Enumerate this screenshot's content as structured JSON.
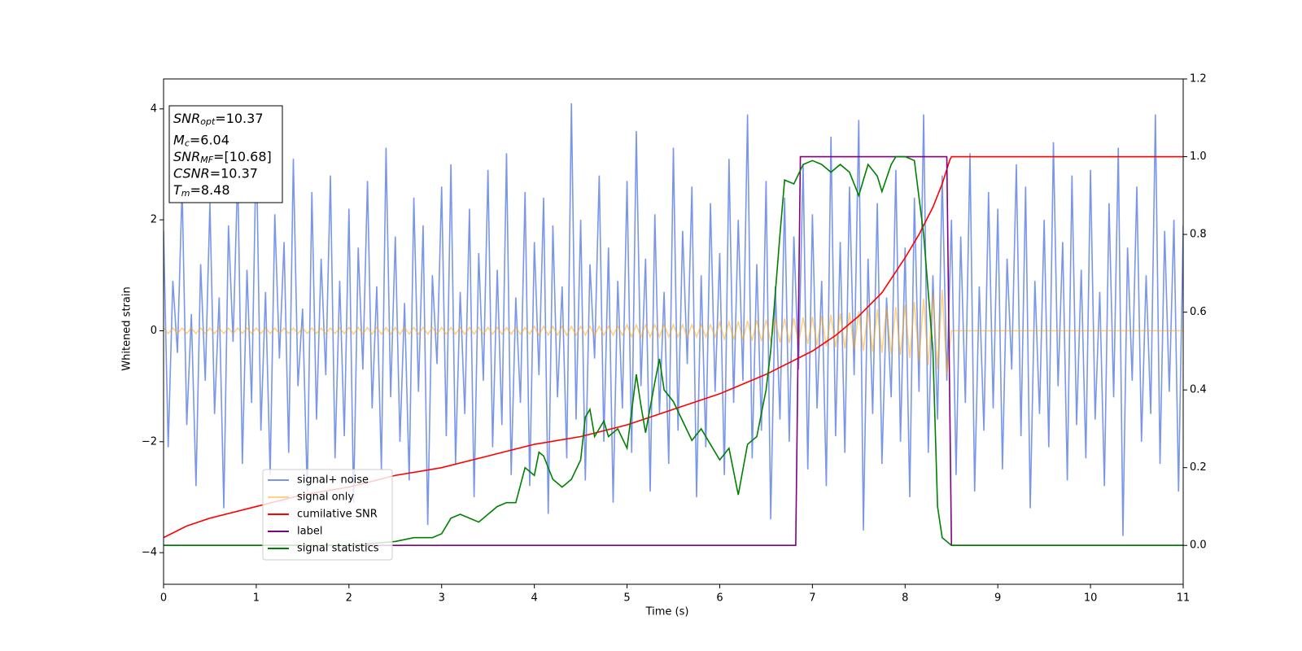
{
  "chart_data": {
    "type": "line",
    "xlabel": "Time (s)",
    "ylabel": "Whitened strain",
    "xlim": [
      0,
      11
    ],
    "xticks": [
      0,
      1,
      2,
      3,
      4,
      5,
      6,
      7,
      8,
      9,
      10,
      11
    ],
    "ylim": [
      -4.57,
      4.54
    ],
    "yticks": [
      -4,
      -2,
      0,
      2,
      4
    ],
    "y2lim": [
      -0.1,
      1.2
    ],
    "y2ticks": [
      {
        "value": 0,
        "label": "0.0"
      },
      0.2,
      0.4,
      0.6,
      0.8,
      {
        "value": 1,
        "label": "1.0"
      },
      1.2
    ],
    "legend": "lower left",
    "annotation": [
      {
        "base": "SNR",
        "sub": "opt",
        "rest": "=10.37"
      },
      {
        "base": "M",
        "sub": "c",
        "rest": "=6.04"
      },
      {
        "base": "SNR",
        "sub": "MF",
        "rest": "=[10.68]"
      },
      {
        "base": "CSNR",
        "rest": "=10.37"
      },
      {
        "base": "T",
        "sub": "m",
        "rest": "=8.48"
      }
    ],
    "x": [
      0,
      0.05,
      0.1,
      0.15,
      0.2,
      0.25,
      0.3,
      0.35,
      0.4,
      0.45,
      0.5,
      0.55,
      0.6,
      0.65,
      0.7,
      0.75,
      0.8,
      0.85,
      0.9,
      0.95,
      1,
      1.05,
      1.1,
      1.15,
      1.2,
      1.25,
      1.3,
      1.35,
      1.4,
      1.45,
      1.5,
      1.55,
      1.6,
      1.65,
      1.7,
      1.75,
      1.8,
      1.85,
      1.9,
      1.95,
      2,
      2.05,
      2.1,
      2.15,
      2.2,
      2.25,
      2.3,
      2.35,
      2.4,
      2.45,
      2.5,
      2.55,
      2.6,
      2.65,
      2.7,
      2.75,
      2.8,
      2.85,
      2.9,
      2.95,
      3,
      3.05,
      3.1,
      3.15,
      3.2,
      3.25,
      3.3,
      3.35,
      3.4,
      3.45,
      3.5,
      3.55,
      3.6,
      3.65,
      3.7,
      3.75,
      3.8,
      3.85,
      3.9,
      3.95,
      4,
      4.05,
      4.1,
      4.15,
      4.2,
      4.25,
      4.3,
      4.35,
      4.4,
      4.45,
      4.5,
      4.55,
      4.6,
      4.65,
      4.7,
      4.75,
      4.8,
      4.85,
      4.9,
      4.95,
      5,
      5.05,
      5.1,
      5.15,
      5.2,
      5.25,
      5.3,
      5.35,
      5.4,
      5.45,
      5.5,
      5.55,
      5.6,
      5.65,
      5.7,
      5.75,
      5.8,
      5.85,
      5.9,
      5.95,
      6,
      6.05,
      6.1,
      6.15,
      6.2,
      6.25,
      6.3,
      6.35,
      6.4,
      6.45,
      6.5,
      6.55,
      6.6,
      6.65,
      6.7,
      6.75,
      6.8,
      6.85,
      6.9,
      6.95,
      7,
      7.05,
      7.1,
      7.15,
      7.2,
      7.25,
      7.3,
      7.35,
      7.4,
      7.45,
      7.5,
      7.55,
      7.6,
      7.65,
      7.7,
      7.75,
      7.8,
      7.85,
      7.9,
      7.95,
      8,
      8.05,
      8.1,
      8.15,
      8.2,
      8.25,
      8.3,
      8.35,
      8.4,
      8.45,
      8.5,
      8.55,
      8.6,
      8.65,
      8.7,
      8.75,
      8.8,
      8.85,
      8.9,
      8.95,
      9,
      9.05,
      9.1,
      9.15,
      9.2,
      9.25,
      9.3,
      9.35,
      9.4,
      9.45,
      9.5,
      9.55,
      9.6,
      9.65,
      9.7,
      9.75,
      9.8,
      9.85,
      9.9,
      9.95,
      10,
      10.05,
      10.1,
      10.15,
      10.2,
      10.25,
      10.3,
      10.35,
      10.4,
      10.45,
      10.5,
      10.55,
      10.6,
      10.65,
      10.7,
      10.75,
      10.8,
      10.85,
      10.9,
      10.95,
      11
    ],
    "series": [
      {
        "name": "signal+ noise",
        "color": "royalblue",
        "alpha": 0.7,
        "values": [
          1.8,
          -2.1,
          0.9,
          -0.4,
          2.6,
          -1.7,
          0.3,
          -2.8,
          1.2,
          -0.9,
          2.3,
          -1.5,
          0.6,
          -3.2,
          1.9,
          -0.2,
          2.9,
          -2.4,
          1.1,
          -1.3,
          3.4,
          -1.8,
          0.7,
          -2.6,
          2.1,
          -0.5,
          1.6,
          -2.2,
          3.1,
          -1.0,
          0.4,
          -2.9,
          2.5,
          -1.6,
          1.3,
          -0.8,
          2.8,
          -2.3,
          0.9,
          -1.9,
          2.2,
          -3.1,
          1.5,
          -0.7,
          2.7,
          -1.4,
          0.8,
          -2.5,
          3.3,
          -1.2,
          1.7,
          -2.0,
          0.5,
          -2.7,
          2.4,
          -1.1,
          1.9,
          -3.5,
          1.0,
          -0.6,
          2.6,
          -1.9,
          3.0,
          -2.4,
          0.7,
          -1.5,
          2.2,
          -3.0,
          1.4,
          -0.9,
          2.9,
          -2.1,
          1.1,
          -1.7,
          3.2,
          -2.6,
          0.6,
          -1.3,
          2.5,
          -2.8,
          1.6,
          -0.8,
          2.4,
          -3.3,
          1.9,
          -1.2,
          0.8,
          -2.3,
          4.1,
          -1.6,
          2.0,
          -2.7,
          1.2,
          -0.5,
          2.8,
          -2.0,
          1.5,
          -3.1,
          0.9,
          -1.4,
          2.7,
          -2.2,
          3.6,
          -1.0,
          1.3,
          -2.9,
          2.1,
          -1.5,
          0.7,
          -2.4,
          3.3,
          -1.8,
          1.8,
          -0.6,
          2.6,
          -3.0,
          1.0,
          -2.1,
          2.3,
          -1.1,
          1.4,
          -2.6,
          3.1,
          -1.3,
          2.0,
          -0.9,
          3.9,
          -2.3,
          1.2,
          -1.8,
          2.7,
          -3.4,
          0.8,
          -1.6,
          2.4,
          -2.0,
          1.7,
          -0.7,
          3.0,
          -2.5,
          2.1,
          -1.4,
          0.9,
          -2.8,
          3.5,
          -1.9,
          1.6,
          -2.2,
          2.6,
          -0.8,
          3.8,
          -3.6,
          1.3,
          -1.5,
          2.3,
          -2.4,
          0.6,
          -1.2,
          2.9,
          -2.0,
          1.5,
          -3.0,
          2.4,
          -1.1,
          3.9,
          -2.2,
          1.0,
          -1.6,
          2.8,
          -0.9,
          2.0,
          -2.6,
          1.7,
          -1.3,
          3.2,
          -2.9,
          0.8,
          -1.8,
          2.5,
          -1.4,
          2.2,
          -2.5,
          1.3,
          -0.7,
          3.0,
          -1.9,
          2.6,
          -3.2,
          0.9,
          -1.5,
          2.0,
          -2.1,
          3.4,
          -1.0,
          1.6,
          -2.7,
          2.8,
          -1.7,
          1.1,
          -2.3,
          2.9,
          -1.6,
          0.7,
          -2.8,
          2.3,
          -1.2,
          3.3,
          -3.7,
          1.5,
          -0.9,
          2.6,
          -2.0,
          1.0,
          -1.5,
          3.9,
          -2.4,
          1.8,
          -1.1,
          2.0,
          -2.9,
          1.9
        ]
      },
      {
        "name": "signal only",
        "color": "orange",
        "alpha": 0.5,
        "values": [
          0.05,
          -0.05,
          0.05,
          -0.05,
          0.05,
          -0.05,
          0.05,
          -0.05,
          0.05,
          -0.05,
          0.05,
          -0.05,
          0.05,
          -0.05,
          0.05,
          -0.05,
          0.05,
          -0.05,
          0.05,
          -0.05,
          0.05,
          -0.05,
          0.05,
          -0.05,
          0.05,
          -0.05,
          0.05,
          -0.05,
          0.05,
          -0.05,
          0.05,
          -0.05,
          0.05,
          -0.05,
          0.05,
          -0.05,
          0.05,
          -0.05,
          0.05,
          -0.05,
          0.06,
          -0.06,
          0.06,
          -0.06,
          0.06,
          -0.06,
          0.06,
          -0.06,
          0.06,
          -0.06,
          0.06,
          -0.06,
          0.06,
          -0.06,
          0.06,
          -0.06,
          0.06,
          -0.06,
          0.06,
          -0.06,
          0.06,
          -0.06,
          0.06,
          -0.06,
          0.06,
          -0.06,
          0.06,
          -0.06,
          0.06,
          -0.06,
          0.06,
          -0.06,
          0.06,
          -0.06,
          0.06,
          -0.06,
          0.06,
          -0.06,
          0.06,
          -0.06,
          0.08,
          -0.08,
          0.08,
          -0.08,
          0.08,
          -0.08,
          0.08,
          -0.08,
          0.08,
          -0.08,
          0.08,
          -0.08,
          0.08,
          -0.08,
          0.08,
          -0.08,
          0.08,
          -0.08,
          0.08,
          -0.08,
          0.11,
          -0.11,
          0.11,
          -0.11,
          0.11,
          -0.11,
          0.11,
          -0.11,
          0.11,
          -0.11,
          0.11,
          -0.11,
          0.11,
          -0.11,
          0.11,
          -0.11,
          0.11,
          -0.11,
          0.11,
          -0.11,
          0.15,
          -0.15,
          0.16,
          -0.16,
          0.17,
          -0.17,
          0.18,
          -0.18,
          0.19,
          -0.19,
          0.2,
          -0.2,
          0.21,
          -0.21,
          0.22,
          -0.22,
          0.23,
          -0.23,
          0.24,
          -0.24,
          0.25,
          -0.26,
          0.27,
          -0.28,
          0.29,
          -0.3,
          0.31,
          -0.32,
          0.33,
          -0.34,
          0.35,
          -0.36,
          0.37,
          -0.38,
          0.39,
          -0.4,
          0.41,
          -0.42,
          0.43,
          -0.44,
          0.46,
          -0.49,
          0.52,
          -0.55,
          0.58,
          -0.62,
          0.66,
          -0.7,
          0.74,
          -0.78,
          0,
          0,
          0,
          0,
          0,
          0,
          0,
          0,
          0,
          0,
          0,
          0,
          0,
          0,
          0,
          0,
          0,
          0,
          0,
          0,
          0,
          0,
          0,
          0,
          0,
          0,
          0,
          0,
          0,
          0,
          0,
          0,
          0,
          0,
          0,
          0,
          0,
          0,
          0,
          0,
          0,
          0,
          0,
          0,
          0,
          0,
          0,
          0,
          0,
          0,
          0
        ]
      },
      {
        "name": "cumilative SNR",
        "color": "red",
        "axis": "y2",
        "x": [
          0,
          0.25,
          0.5,
          1,
          1.5,
          2,
          2.5,
          3,
          3.5,
          4,
          4.5,
          5,
          5.5,
          6,
          6.5,
          7,
          7.25,
          7.5,
          7.75,
          8,
          8.15,
          8.3,
          8.4,
          8.48,
          8.5,
          11
        ],
        "values": [
          0.02,
          0.05,
          0.07,
          0.1,
          0.13,
          0.15,
          0.18,
          0.2,
          0.23,
          0.26,
          0.28,
          0.31,
          0.35,
          0.39,
          0.44,
          0.5,
          0.54,
          0.59,
          0.65,
          0.74,
          0.8,
          0.87,
          0.93,
          0.99,
          1.0,
          1.0
        ]
      },
      {
        "name": "label",
        "color": "purple",
        "axis": "y2",
        "x": [
          0,
          6.82,
          6.87,
          8.45,
          8.5,
          11
        ],
        "values": [
          0,
          0,
          1,
          1,
          0,
          0
        ]
      },
      {
        "name": "signal statistics",
        "color": "green",
        "axis": "y2",
        "x": [
          0,
          1,
          2,
          2.5,
          2.7,
          2.9,
          3.0,
          3.1,
          3.2,
          3.3,
          3.4,
          3.5,
          3.6,
          3.7,
          3.8,
          3.9,
          4.0,
          4.05,
          4.1,
          4.2,
          4.3,
          4.4,
          4.5,
          4.55,
          4.6,
          4.65,
          4.75,
          4.8,
          4.9,
          5.0,
          5.1,
          5.15,
          5.2,
          5.3,
          5.35,
          5.4,
          5.5,
          5.6,
          5.7,
          5.8,
          5.9,
          6.0,
          6.1,
          6.2,
          6.3,
          6.4,
          6.5,
          6.55,
          6.65,
          6.7,
          6.8,
          6.9,
          7.0,
          7.1,
          7.2,
          7.3,
          7.4,
          7.5,
          7.6,
          7.7,
          7.75,
          7.85,
          7.9,
          8.0,
          8.1,
          8.2,
          8.3,
          8.35,
          8.4,
          8.5,
          11
        ],
        "values": [
          0,
          0,
          0,
          0.01,
          0.02,
          0.02,
          0.03,
          0.07,
          0.08,
          0.07,
          0.06,
          0.08,
          0.1,
          0.11,
          0.11,
          0.2,
          0.18,
          0.24,
          0.23,
          0.17,
          0.15,
          0.17,
          0.22,
          0.33,
          0.35,
          0.28,
          0.32,
          0.28,
          0.3,
          0.25,
          0.44,
          0.36,
          0.29,
          0.42,
          0.48,
          0.4,
          0.37,
          0.32,
          0.27,
          0.3,
          0.26,
          0.22,
          0.25,
          0.13,
          0.26,
          0.28,
          0.4,
          0.5,
          0.8,
          0.94,
          0.93,
          0.98,
          0.99,
          0.98,
          0.96,
          0.98,
          0.96,
          0.9,
          0.98,
          0.95,
          0.91,
          0.98,
          1.0,
          1.0,
          0.99,
          0.8,
          0.5,
          0.1,
          0.02,
          0,
          0
        ]
      }
    ]
  }
}
